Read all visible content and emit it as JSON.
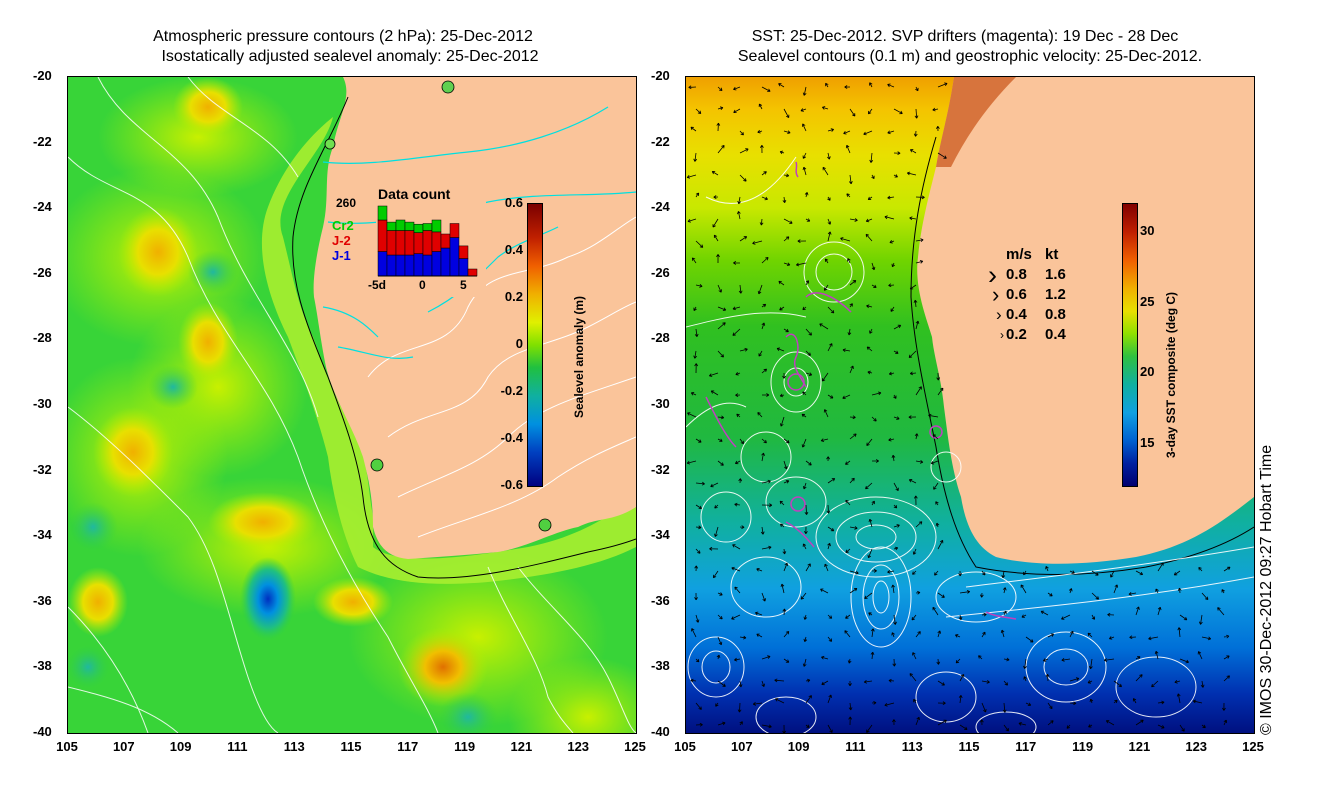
{
  "left_map": {
    "title_line1": "Atmospheric pressure contours (2 hPa): 25-Dec-2012",
    "title_line2": "Isostatically adjusted sealevel anomaly: 25-Dec-2012",
    "y_ticks": [
      "-20",
      "-22",
      "-24",
      "-26",
      "-28",
      "-30",
      "-32",
      "-34",
      "-36",
      "-38",
      "-40"
    ],
    "x_ticks": [
      "105",
      "107",
      "109",
      "111",
      "113",
      "115",
      "117",
      "119",
      "121",
      "123",
      "125"
    ],
    "colorbar": {
      "label": "Sealevel anomaly (m)",
      "ticks": [
        "0.6",
        "0.4",
        "0.2",
        "0",
        "-0.2",
        "-0.4",
        "-0.6"
      ]
    },
    "inset": {
      "title": "Data count",
      "max": "260",
      "legend": [
        {
          "name": "Cr2",
          "color": "#00cc00"
        },
        {
          "name": "J-2",
          "color": "#e00000"
        },
        {
          "name": "J-1",
          "color": "#0000e0"
        }
      ],
      "x_labels": [
        "-5d",
        "0",
        "5"
      ],
      "bars": [
        {
          "jl1": 0.35,
          "jl2": 0.45,
          "cr2": 0.2
        },
        {
          "jl1": 0.3,
          "jl2": 0.35,
          "cr2": 0.12
        },
        {
          "jl1": 0.3,
          "jl2": 0.35,
          "cr2": 0.15
        },
        {
          "jl1": 0.3,
          "jl2": 0.35,
          "cr2": 0.12
        },
        {
          "jl1": 0.32,
          "jl2": 0.3,
          "cr2": 0.12
        },
        {
          "jl1": 0.3,
          "jl2": 0.35,
          "cr2": 0.1
        },
        {
          "jl1": 0.35,
          "jl2": 0.28,
          "cr2": 0.17
        },
        {
          "jl1": 0.4,
          "jl2": 0.2,
          "cr2": 0.0
        },
        {
          "jl1": 0.55,
          "jl2": 0.2,
          "cr2": 0.0
        },
        {
          "jl1": 0.25,
          "jl2": 0.18,
          "cr2": 0.0
        },
        {
          "jl1": 0.0,
          "jl2": 0.1,
          "cr2": 0.0
        }
      ]
    }
  },
  "right_map": {
    "title_line1": "SST: 25-Dec-2012. SVP drifters (magenta): 19 Dec - 28 Dec",
    "title_line2": "Sealevel contours (0.1 m) and geostrophic velocity: 25-Dec-2012.",
    "y_ticks": [
      "-20",
      "-22",
      "-24",
      "-26",
      "-28",
      "-30",
      "-32",
      "-34",
      "-36",
      "-38",
      "-40"
    ],
    "x_ticks": [
      "105",
      "107",
      "109",
      "111",
      "113",
      "115",
      "117",
      "119",
      "121",
      "123",
      "125"
    ],
    "colorbar": {
      "label": "3-day SST composite (deg C)",
      "ticks": [
        "30",
        "25",
        "20",
        "15"
      ]
    },
    "velocity_legend": {
      "header_ms": "m/s",
      "header_kt": "kt",
      "rows": [
        {
          "ms": "0.8",
          "kt": "1.6"
        },
        {
          "ms": "0.6",
          "kt": "1.2"
        },
        {
          "ms": "0.4",
          "kt": "0.8"
        },
        {
          "ms": "0.2",
          "kt": "0.4"
        }
      ]
    }
  },
  "credit": "© IMOS 30-Dec-2012 09:27 Hobart Time"
}
